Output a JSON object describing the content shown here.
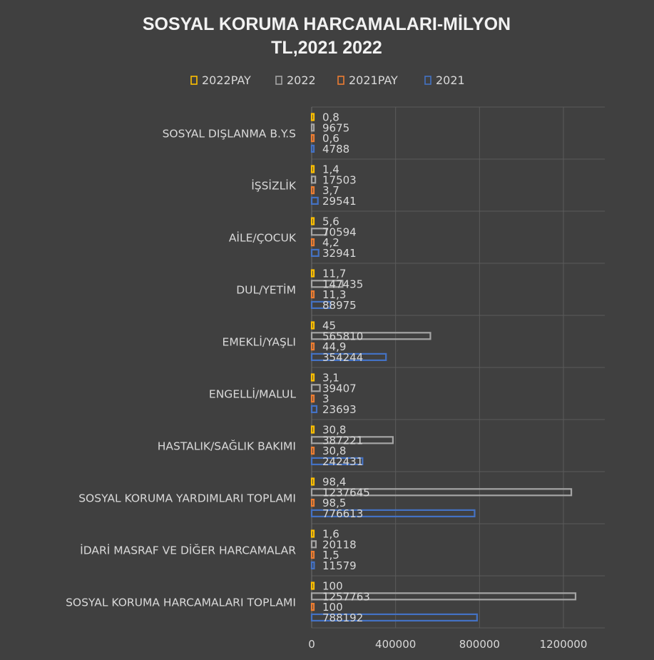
{
  "chart_data": {
    "type": "bar",
    "orientation": "horizontal",
    "title_lines": [
      "SOSYAL KORUMA HARCAMALARI-MİLYON",
      "TL,2021    2022"
    ],
    "legend_position": "top",
    "legend": [
      "2022PAY",
      "2022",
      "2021PAY",
      "2021"
    ],
    "categories": [
      "SOSYAL DIŞLANMA B.Y.S",
      "İŞSİZLİK",
      "AİLE/ÇOCUK",
      "DUL/YETİM",
      "EMEKLİ/YAŞLI",
      "ENGELLİ/MALUL",
      "HASTALIK/SAĞLIK BAKIMI",
      "SOSYAL KORUMA YARDIMLARI TOPLAMI",
      "İDARİ MASRAF VE DİĞER HARCAMALAR",
      "SOSYAL KORUMA HARCAMALARI TOPLAMI"
    ],
    "series": [
      {
        "name": "2022PAY",
        "color": "#ffc000",
        "values": [
          0.8,
          1.4,
          5.6,
          11.7,
          45,
          3.1,
          30.8,
          98.4,
          1.6,
          100
        ],
        "labels": [
          "0,8",
          "1,4",
          "5,6",
          "11,7",
          "45",
          "3,1",
          "30,8",
          "98,4",
          "1,6",
          "100"
        ]
      },
      {
        "name": "2022",
        "color": "#a5a5a5",
        "values": [
          9675,
          17503,
          70594,
          147435,
          565810,
          39407,
          387221,
          1237645,
          20118,
          1257763
        ],
        "labels": [
          "9675",
          "17503",
          "70594",
          "147435",
          "565810",
          "39407",
          "387221",
          "1237645",
          "20118",
          "1257763"
        ]
      },
      {
        "name": "2021PAY",
        "color": "#ed7d31",
        "values": [
          0.6,
          3.7,
          4.2,
          11.3,
          44.9,
          3,
          30.8,
          98.5,
          1.5,
          100
        ],
        "labels": [
          "0,6",
          "3,7",
          "4,2",
          "11,3",
          "44,9",
          "3",
          "30,8",
          "98,5",
          "1,5",
          "100"
        ]
      },
      {
        "name": "2021",
        "color": "#4472c4",
        "values": [
          4788,
          29541,
          32941,
          88975,
          354244,
          23693,
          242431,
          776613,
          11579,
          788192
        ],
        "labels": [
          "4788",
          "29541",
          "32941",
          "88975",
          "354244",
          "23693",
          "242431",
          "776613",
          "11579",
          "788192"
        ]
      }
    ],
    "x_ticks": [
      0,
      400000,
      800000,
      1200000
    ],
    "x_tick_labels": [
      "0",
      "400000",
      "800000",
      "1200000"
    ],
    "xlim": [
      0,
      1400000
    ],
    "grid": "vertical"
  }
}
